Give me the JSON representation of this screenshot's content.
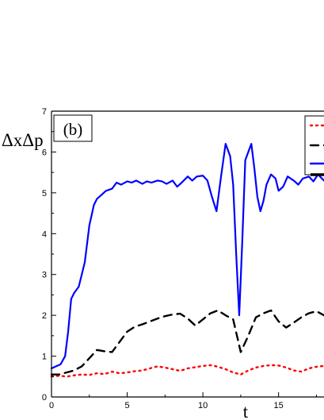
{
  "chart_data": {
    "type": "line",
    "panel_label": "(b)",
    "ylabel": "ΔxΔp",
    "xlabel": "t",
    "xlim": [
      0,
      18
    ],
    "ylim": [
      0,
      7
    ],
    "xticks": [
      0,
      5,
      10,
      15
    ],
    "yticks": [
      0,
      1,
      2,
      3,
      4,
      5,
      6,
      7
    ],
    "grid": false,
    "legend_position": "top-right (partially cropped)",
    "series": [
      {
        "color": "#ff0000",
        "style": "dotted",
        "x": [
          0,
          0.5,
          1,
          1.5,
          2,
          2.5,
          3,
          3.5,
          4,
          4.5,
          5,
          5.5,
          6,
          6.5,
          7,
          7.5,
          8,
          8.5,
          9,
          9.5,
          10,
          10.5,
          11,
          11.5,
          12,
          12.5,
          13,
          13.5,
          14,
          14.5,
          15,
          15.5,
          16,
          16.5,
          17,
          17.5,
          18
        ],
        "y": [
          0.5,
          0.52,
          0.5,
          0.53,
          0.55,
          0.54,
          0.58,
          0.56,
          0.62,
          0.58,
          0.6,
          0.63,
          0.65,
          0.7,
          0.75,
          0.72,
          0.68,
          0.64,
          0.7,
          0.73,
          0.76,
          0.78,
          0.74,
          0.68,
          0.6,
          0.55,
          0.65,
          0.72,
          0.76,
          0.78,
          0.77,
          0.72,
          0.65,
          0.62,
          0.7,
          0.74,
          0.76
        ]
      },
      {
        "color": "#000000",
        "style": "dashed",
        "x": [
          0,
          0.5,
          1,
          1.5,
          2,
          2.5,
          3,
          3.5,
          4,
          4.5,
          5,
          5.5,
          6,
          6.5,
          7,
          7.5,
          8,
          8.5,
          9,
          9.5,
          10,
          10.5,
          11,
          11.5,
          12,
          12.5,
          13,
          13.5,
          14,
          14.5,
          15,
          15.5,
          16,
          16.5,
          17,
          17.5,
          18
        ],
        "y": [
          0.55,
          0.55,
          0.6,
          0.65,
          0.75,
          0.95,
          1.15,
          1.12,
          1.1,
          1.35,
          1.6,
          1.72,
          1.78,
          1.85,
          1.92,
          1.98,
          2.02,
          2.04,
          1.92,
          1.75,
          1.9,
          2.05,
          2.12,
          2.0,
          1.9,
          1.1,
          1.5,
          1.95,
          2.05,
          2.12,
          1.85,
          1.7,
          1.82,
          1.95,
          2.05,
          2.1,
          2.0
        ]
      },
      {
        "color": "#0000ff",
        "style": "solid",
        "x": [
          0,
          0.3,
          0.6,
          0.9,
          1.1,
          1.3,
          1.5,
          1.8,
          2.0,
          2.2,
          2.5,
          2.8,
          3.0,
          3.3,
          3.6,
          4.0,
          4.3,
          4.6,
          5.0,
          5.3,
          5.6,
          6.0,
          6.3,
          6.6,
          7.0,
          7.3,
          7.6,
          8.0,
          8.3,
          8.6,
          9.0,
          9.3,
          9.6,
          10.0,
          10.3,
          10.6,
          10.9,
          11.2,
          11.5,
          11.8,
          12.0,
          12.2,
          12.4,
          12.6,
          12.8,
          13.0,
          13.2,
          13.4,
          13.6,
          13.8,
          14.0,
          14.2,
          14.5,
          14.8,
          15.0,
          15.3,
          15.6,
          16.0,
          16.3,
          16.6,
          17.0,
          17.3,
          17.6,
          18.0
        ],
        "y": [
          0.7,
          0.75,
          0.8,
          1.0,
          1.6,
          2.4,
          2.55,
          2.7,
          3.0,
          3.3,
          4.2,
          4.7,
          4.85,
          4.95,
          5.05,
          5.1,
          5.25,
          5.2,
          5.28,
          5.25,
          5.3,
          5.22,
          5.28,
          5.25,
          5.3,
          5.28,
          5.22,
          5.3,
          5.15,
          5.25,
          5.4,
          5.3,
          5.4,
          5.42,
          5.3,
          4.9,
          4.55,
          5.4,
          6.2,
          5.9,
          5.2,
          3.5,
          2.0,
          3.8,
          5.8,
          6.0,
          6.2,
          5.6,
          4.9,
          4.55,
          4.8,
          5.2,
          5.45,
          5.35,
          5.05,
          5.15,
          5.4,
          5.3,
          5.2,
          5.35,
          5.4,
          5.28,
          5.45,
          5.3
        ]
      }
    ],
    "legend": {
      "entries": [
        {
          "color": "#ff0000",
          "style": "dotted",
          "label": ""
        },
        {
          "color": "#000000",
          "style": "dashed",
          "label": ""
        },
        {
          "color": "#0000ff",
          "style": "solid",
          "label": ""
        }
      ]
    }
  }
}
